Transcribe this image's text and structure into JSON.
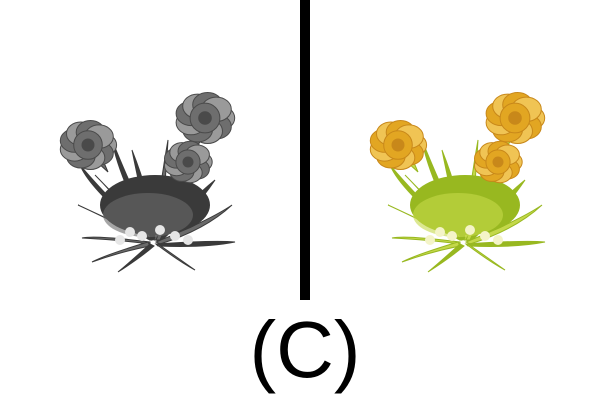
{
  "caption": "(C)",
  "panels": [
    {
      "variant": "grayscale",
      "colors": {
        "flower": "#6e6e6e",
        "flower_light": "#9a9a9a",
        "flower_dark": "#4a4a4a",
        "leaf": "#3a3a3a",
        "leaf_light": "#6a6a6a",
        "blossom": "#e6e6e6"
      }
    },
    {
      "variant": "color",
      "colors": {
        "flower": "#e2a622",
        "flower_light": "#f0c454",
        "flower_dark": "#c8881a",
        "leaf": "#98b820",
        "leaf_light": "#c4d84a",
        "blossom": "#f4f4c8"
      }
    }
  ],
  "divider_color": "#000000"
}
